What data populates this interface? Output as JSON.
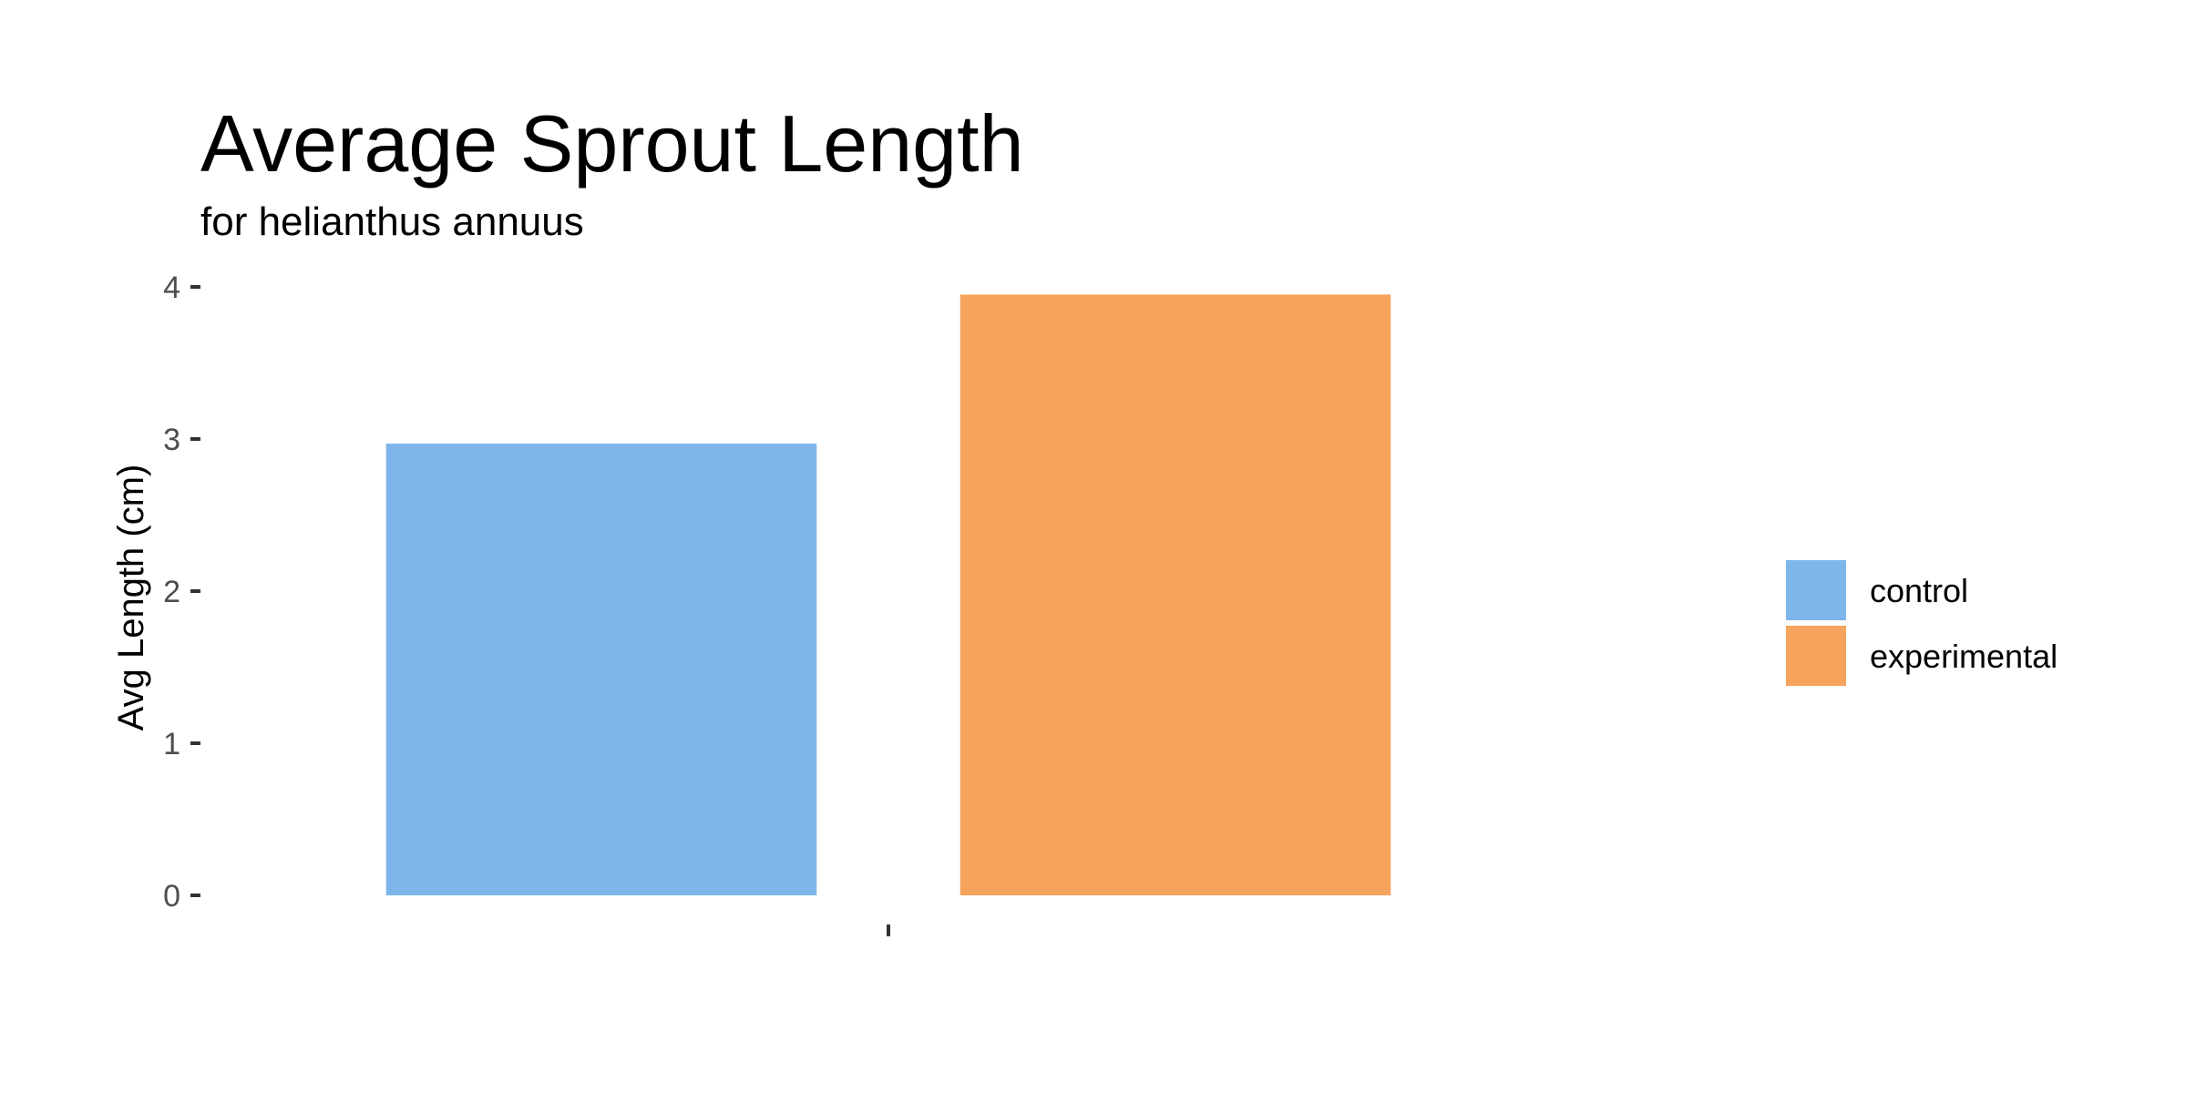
{
  "chart_data": {
    "type": "bar",
    "title": "Average Sprout Length",
    "subtitle": "for  helianthus annuus",
    "xlabel": "",
    "ylabel": "Avg Length (cm)",
    "categories": [
      ""
    ],
    "series": [
      {
        "name": "control",
        "values": [
          2.97
        ],
        "color": "#7eb5ea"
      },
      {
        "name": "experimental",
        "values": [
          3.95
        ],
        "color": "#f6a45d"
      }
    ],
    "ylim": [
      0,
      4
    ],
    "yticks": [
      0,
      1,
      2,
      3,
      4
    ],
    "grid": false,
    "legend": {
      "position": "right",
      "title": ""
    }
  }
}
